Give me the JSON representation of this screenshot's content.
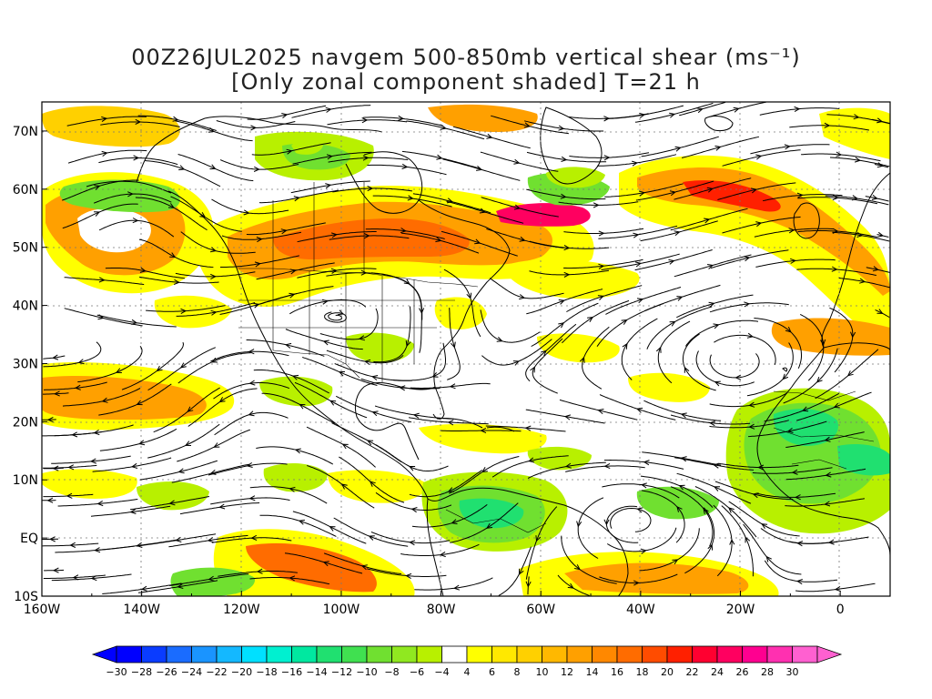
{
  "title": {
    "line1": "00Z26JUL2025 navgem 500-850mb vertical shear (ms⁻¹)",
    "line2": "[Only zonal component shaded] T=21 h"
  },
  "axes": {
    "lon_labels": [
      "160W",
      "140W",
      "120W",
      "100W",
      "80W",
      "60W",
      "40W",
      "20W",
      "0"
    ],
    "lat_labels": [
      "70N",
      "60N",
      "50N",
      "40N",
      "30N",
      "20N",
      "10N",
      "EQ",
      "10S"
    ],
    "lon_range": [
      -160,
      10
    ],
    "lat_range": [
      -10,
      75
    ]
  },
  "colorbar": {
    "labels": [
      "-30",
      "-28",
      "-26",
      "-24",
      "-22",
      "-20",
      "-18",
      "-16",
      "-14",
      "-12",
      "-10",
      "-8",
      "-6",
      "-4",
      "4",
      "6",
      "8",
      "10",
      "12",
      "14",
      "16",
      "18",
      "20",
      "22",
      "24",
      "26",
      "28",
      "30"
    ],
    "colors": [
      "#0000ff",
      "#0a3cff",
      "#1a6cff",
      "#1a94ff",
      "#14b8ff",
      "#00e0ff",
      "#00f0d0",
      "#00e8a0",
      "#20e070",
      "#40e050",
      "#70e030",
      "#90e820",
      "#b8f000",
      "#ffffff",
      "#ffff00",
      "#ffe800",
      "#ffd000",
      "#ffb800",
      "#ffa000",
      "#ff8800",
      "#ff6c00",
      "#ff4c00",
      "#ff2000",
      "#ff0030",
      "#ff0060",
      "#ff0090",
      "#ff30b0",
      "#ff60d0"
    ]
  },
  "map_colors": {
    "neg_light": "#b8f000",
    "neg_mid": "#70e030",
    "neg_strong": "#20e070",
    "neg_deep": "#00e8a0",
    "pos_light": "#ffff00",
    "pos_mid": "#ffd000",
    "pos_orange": "#ffa000",
    "pos_strong": "#ff6c00",
    "pos_deep": "#ff2000",
    "pos_max": "#ff0060"
  }
}
